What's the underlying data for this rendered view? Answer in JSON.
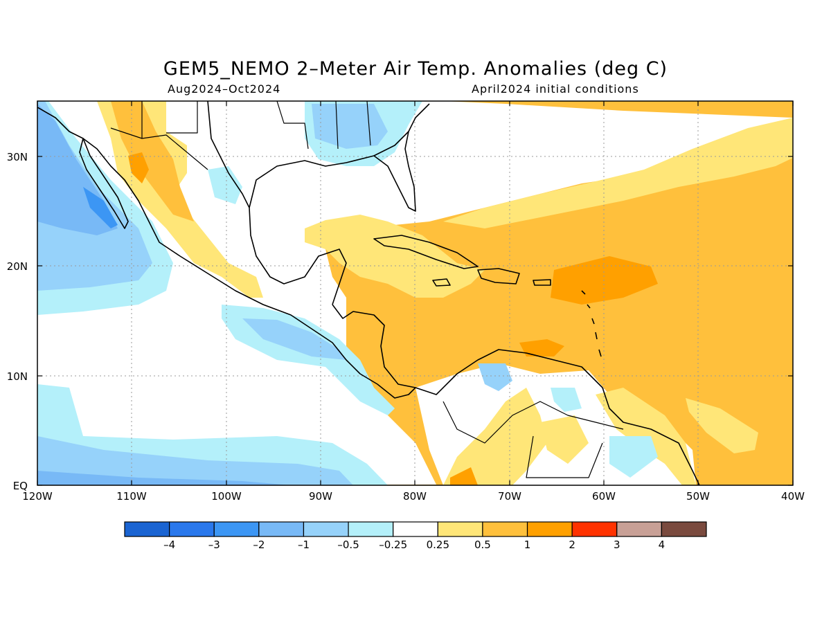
{
  "header": {
    "title": "GEM5_NEMO 2–Meter Air Temp. Anomalies (deg C)",
    "period": "Aug2024–Oct2024",
    "initial_conditions": "April2024 initial conditions"
  },
  "map": {
    "lon_labels": [
      "120W",
      "110W",
      "100W",
      "90W",
      "80W",
      "70W",
      "60W",
      "50W",
      "40W"
    ],
    "lat_labels": [
      "EQ",
      "10N",
      "20N",
      "30N"
    ],
    "lon_range": [
      -120,
      -40
    ],
    "lat_range": [
      0,
      35
    ],
    "grid": "dotted"
  },
  "colorbar": {
    "colors": [
      "#1a64d2",
      "#2a78ec",
      "#3c96f4",
      "#78b9f6",
      "#96d2fa",
      "#b4f0fa",
      "#ffffff",
      "#ffe678",
      "#ffc03c",
      "#ffa000",
      "#ff3200",
      "#c8a096",
      "#7a4a3e"
    ],
    "labels": [
      "–4",
      "–3",
      "–2",
      "–1",
      "–0.5",
      "–0.25",
      "0.25",
      "0.5",
      "1",
      "2",
      "3",
      "4"
    ]
  }
}
